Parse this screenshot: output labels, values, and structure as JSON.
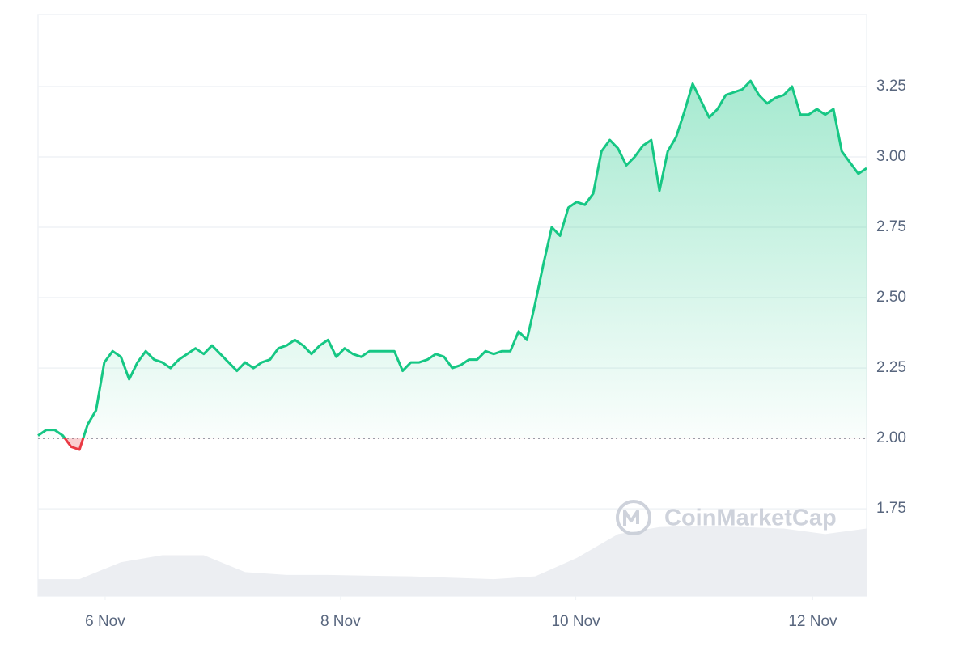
{
  "chart_data": {
    "type": "line",
    "watermark": "CoinMarketCap",
    "xlim": [
      0,
      100
    ],
    "xticks": [
      {
        "value": 8.1,
        "label": "6 Nov"
      },
      {
        "value": 36.5,
        "label": "8 Nov"
      },
      {
        "value": 64.9,
        "label": "10 Nov"
      },
      {
        "value": 93.5,
        "label": "12 Nov"
      }
    ],
    "ylim": [
      1.44,
      3.5
    ],
    "yticks": [
      1.75,
      {
        "value": 2,
        "label": "2.00"
      },
      2.25,
      {
        "value": 2.5,
        "label": "2.50"
      },
      2.75,
      {
        "value": 3,
        "label": "3.00"
      },
      3.25
    ],
    "grid": true,
    "baseline": 2,
    "color": "#16c784",
    "below_color": "#ea3943",
    "values": [
      2.01,
      2.03,
      2.03,
      2.01,
      1.97,
      1.96,
      2.05,
      2.1,
      2.27,
      2.31,
      2.29,
      2.21,
      2.27,
      2.31,
      2.28,
      2.27,
      2.25,
      2.28,
      2.3,
      2.32,
      2.3,
      2.33,
      2.3,
      2.27,
      2.24,
      2.27,
      2.25,
      2.27,
      2.28,
      2.32,
      2.33,
      2.35,
      2.33,
      2.3,
      2.33,
      2.35,
      2.29,
      2.32,
      2.3,
      2.29,
      2.31,
      2.31,
      2.31,
      2.31,
      2.24,
      2.27,
      2.27,
      2.28,
      2.3,
      2.29,
      2.25,
      2.26,
      2.28,
      2.28,
      2.31,
      2.3,
      2.31,
      2.31,
      2.38,
      2.35,
      2.48,
      2.62,
      2.75,
      2.72,
      2.82,
      2.84,
      2.83,
      2.87,
      3.02,
      3.06,
      3.03,
      2.97,
      3.0,
      3.04,
      3.06,
      2.88,
      3.02,
      3.07,
      3.16,
      3.26,
      3.2,
      3.14,
      3.17,
      3.22,
      3.23,
      3.24,
      3.27,
      3.22,
      3.19,
      3.21,
      3.22,
      3.25,
      3.15,
      3.15,
      3.17,
      3.15,
      3.17,
      3.02,
      2.98,
      2.94,
      2.96
    ],
    "volume_area": {
      "color": "#eceef2",
      "values": [
        1.5,
        1.5,
        1.56,
        1.585,
        1.585,
        1.525,
        1.515,
        1.515,
        1.512,
        1.51,
        1.505,
        1.5,
        1.51,
        1.575,
        1.66,
        1.685,
        1.69,
        1.685,
        1.68,
        1.66,
        1.68
      ]
    }
  }
}
